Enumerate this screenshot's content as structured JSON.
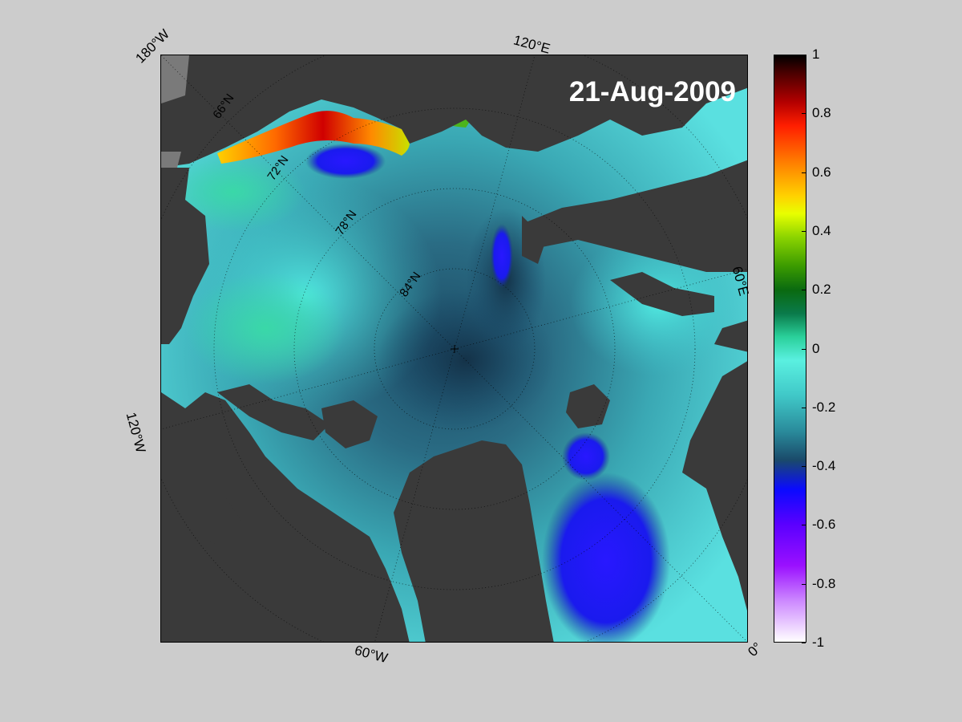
{
  "date_label": "21-Aug-2009",
  "longitude_labels": {
    "top_left": "180°W",
    "top": "120°E",
    "right": "60°E",
    "left": "120°W",
    "bottom": "60°W",
    "bottom_right": "0°"
  },
  "latitude_labels": [
    "66°N",
    "72°N",
    "78°N",
    "84°N"
  ],
  "colorbar": {
    "min": -1,
    "max": 1,
    "tick_labels": [
      "1",
      "0.8",
      "0.6",
      "0.4",
      "0.2",
      "0",
      "-0.2",
      "-0.4",
      "-0.6",
      "-0.8",
      "-1"
    ]
  },
  "colors": {
    "background": "#cccccc",
    "land": "#3a3a3a",
    "ocean_mid": "#2a8c9c",
    "ocean_low": "#1a4a6a",
    "anomaly_negative": "#2020ff",
    "anomaly_positive": "#ff2000"
  }
}
